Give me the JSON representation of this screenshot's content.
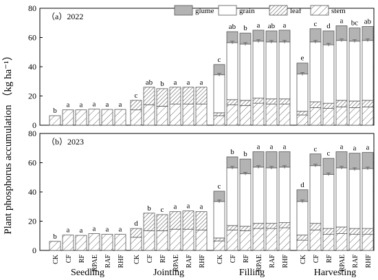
{
  "chart_data": {
    "type": "bar",
    "stacked": true,
    "ylabel": "Plant phosphorus accumulation （kg ha⁻¹）",
    "ylim": [
      0,
      80
    ],
    "yticks": [
      0,
      20,
      40,
      60,
      80
    ],
    "legend": {
      "placement": "top-right",
      "entries": [
        {
          "name": "glume",
          "style": "solid-gray"
        },
        {
          "name": "grain",
          "style": "white"
        },
        {
          "name": "leaf",
          "style": "hatch-dense"
        },
        {
          "name": "stem",
          "style": "hatch-sparse"
        }
      ]
    },
    "colors": {
      "glume": "#b3b3b3",
      "grain": "#ffffff",
      "hatch": "#555555",
      "axis": "#000000"
    },
    "treatments": [
      "CK",
      "CF",
      "RF",
      "RPAE",
      "RAF",
      "RHF"
    ],
    "stages": [
      "Seedling",
      "Jointing",
      "Filling",
      "Harvesting"
    ],
    "panels": [
      {
        "label": "（a）2022",
        "stages": [
          {
            "stage": "Seedling",
            "stem": [
              6.5,
              10.5,
              10.5,
              11.0,
              10.8,
              10.8
            ],
            "leaf": [
              0,
              0,
              0,
              0,
              0,
              0
            ],
            "grain": [
              0,
              0,
              0,
              0,
              0,
              0
            ],
            "glume": [
              0,
              0,
              0,
              0,
              0,
              0
            ],
            "letters": [
              "b",
              "a",
              "a",
              "a",
              "a",
              "a"
            ]
          },
          {
            "stage": "Jointing",
            "stem": [
              10.5,
              14.0,
              13.0,
              14.5,
              14.5,
              14.5
            ],
            "leaf": [
              6.5,
              12.0,
              12.0,
              11.5,
              11.5,
              11.5
            ],
            "grain": [
              0,
              0,
              0,
              0,
              0,
              0
            ],
            "glume": [
              0,
              0,
              0,
              0,
              0,
              0
            ],
            "letters": [
              "c",
              "ab",
              "b",
              "a",
              "a",
              "a"
            ]
          },
          {
            "stage": "Filling",
            "stem": [
              6.5,
              14.0,
              13.5,
              15.0,
              14.5,
              14.5
            ],
            "leaf": [
              2.0,
              3.5,
              3.5,
              3.5,
              3.5,
              3.5
            ],
            "grain": [
              26.0,
              39.0,
              38.5,
              39.0,
              39.0,
              39.0
            ],
            "glume": [
              7.0,
              7.5,
              7.5,
              7.5,
              7.5,
              8.0
            ],
            "letters": [
              "c",
              "ab",
              "b",
              "a",
              "ab",
              "a"
            ]
          },
          {
            "stage": "Harvesting",
            "stem": [
              7.0,
              12.0,
              11.5,
              12.5,
              12.0,
              12.5
            ],
            "leaf": [
              2.5,
              4.0,
              3.5,
              4.5,
              4.5,
              4.5
            ],
            "grain": [
              25.5,
              41.0,
              40.0,
              41.0,
              41.0,
              41.0
            ],
            "glume": [
              7.5,
              9.0,
              9.5,
              10.0,
              9.0,
              9.5
            ],
            "letters": [
              "e",
              "c",
              "d",
              "a",
              "bc",
              "ab"
            ]
          }
        ]
      },
      {
        "label": "（b）2023",
        "stages": [
          {
            "stage": "Seedling",
            "stem": [
              6.2,
              10.5,
              10.3,
              11.5,
              11.0,
              11.0
            ],
            "leaf": [
              0,
              0,
              0,
              0,
              0,
              0
            ],
            "grain": [
              0,
              0,
              0,
              0,
              0,
              0
            ],
            "glume": [
              0,
              0,
              0,
              0,
              0,
              0
            ],
            "letters": [
              "b",
              "a",
              "a",
              "a",
              "a",
              "a"
            ]
          },
          {
            "stage": "Jointing",
            "stem": [
              9.0,
              13.5,
              13.5,
              14.5,
              14.5,
              14.0
            ],
            "leaf": [
              6.0,
              12.0,
              11.0,
              12.0,
              12.5,
              12.5
            ],
            "grain": [
              0,
              0,
              0,
              0,
              0,
              0
            ],
            "glume": [
              0,
              0,
              0,
              0,
              0,
              0
            ],
            "letters": [
              "d",
              "b",
              "c",
              "a",
              "a",
              "a"
            ]
          },
          {
            "stage": "Filling",
            "stem": [
              6.5,
              14.0,
              13.5,
              15.0,
              15.0,
              15.5
            ],
            "leaf": [
              2.0,
              3.0,
              3.0,
              3.5,
              3.5,
              3.5
            ],
            "grain": [
              25.0,
              39.5,
              36.0,
              38.5,
              38.0,
              38.0
            ],
            "glume": [
              7.0,
              7.5,
              10.0,
              10.5,
              11.0,
              10.5
            ],
            "letters": [
              "c",
              "b",
              "b",
              "a",
              "a",
              "a"
            ]
          },
          {
            "stage": "Harvesting",
            "stem": [
              7.0,
              14.0,
              11.0,
              11.5,
              11.0,
              11.0
            ],
            "leaf": [
              3.5,
              4.5,
              4.0,
              4.5,
              4.0,
              4.0
            ],
            "grain": [
              23.0,
              39.5,
              37.0,
              40.5,
              40.5,
              41.0
            ],
            "glume": [
              8.0,
              8.0,
              11.0,
              11.0,
              11.0,
              11.0
            ],
            "letters": [
              "d",
              "c",
              "c",
              "a",
              "a",
              "a"
            ]
          }
        ]
      }
    ]
  }
}
